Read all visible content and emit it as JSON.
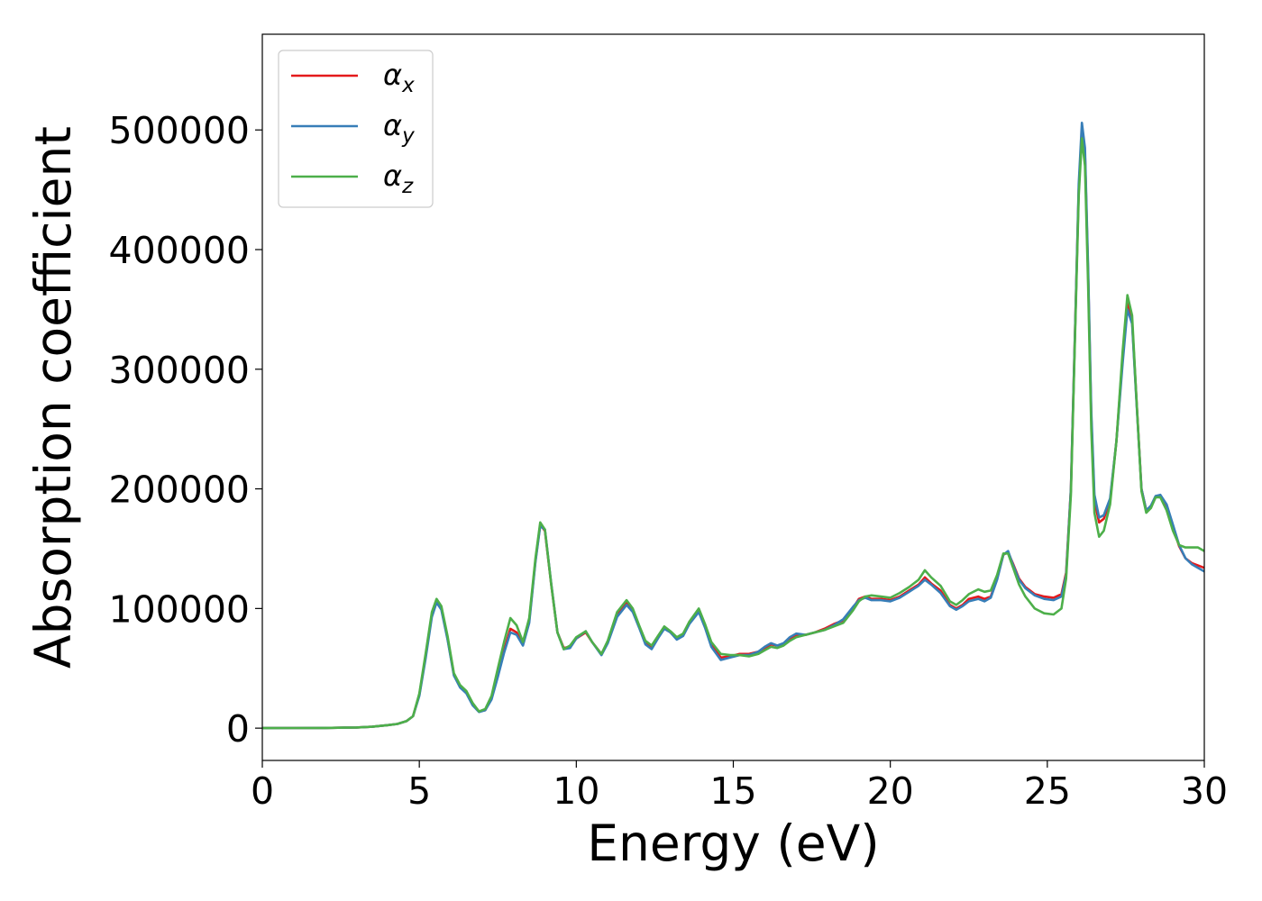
{
  "chart_data": {
    "type": "line",
    "title": "",
    "xlabel": "Energy (eV)",
    "ylabel": "Absorption coefficient",
    "xlim": [
      0,
      30
    ],
    "ylim": [
      -27000,
      580000
    ],
    "xticks": [
      0,
      5,
      10,
      15,
      20,
      25,
      30
    ],
    "yticks": [
      0,
      100000,
      200000,
      300000,
      400000,
      500000
    ],
    "grid": false,
    "legend_position": "top-left",
    "series": [
      {
        "name": "α",
        "subscript": "x",
        "color": "#e41a1c",
        "x": [
          0,
          1,
          2,
          3,
          3.5,
          4,
          4.3,
          4.6,
          4.8,
          5.0,
          5.2,
          5.4,
          5.55,
          5.7,
          5.9,
          6.1,
          6.3,
          6.5,
          6.7,
          6.9,
          7.1,
          7.3,
          7.5,
          7.7,
          7.9,
          8.1,
          8.3,
          8.5,
          8.7,
          8.85,
          9.0,
          9.2,
          9.4,
          9.6,
          9.8,
          10.0,
          10.3,
          10.5,
          10.8,
          11.0,
          11.3,
          11.6,
          11.8,
          12.0,
          12.2,
          12.4,
          12.6,
          12.8,
          13.0,
          13.2,
          13.4,
          13.6,
          13.9,
          14.1,
          14.3,
          14.6,
          14.9,
          15.2,
          15.5,
          15.8,
          16.0,
          16.2,
          16.4,
          16.6,
          16.8,
          17.0,
          17.3,
          17.6,
          17.9,
          18.2,
          18.5,
          18.8,
          19.0,
          19.2,
          19.4,
          19.7,
          20.0,
          20.3,
          20.6,
          20.9,
          21.1,
          21.3,
          21.6,
          21.9,
          22.1,
          22.3,
          22.5,
          22.8,
          23.0,
          23.2,
          23.4,
          23.6,
          23.75,
          23.9,
          24.1,
          24.3,
          24.6,
          24.9,
          25.2,
          25.45,
          25.6,
          25.75,
          25.9,
          26.0,
          26.1,
          26.2,
          26.3,
          26.4,
          26.5,
          26.65,
          26.8,
          27.0,
          27.2,
          27.4,
          27.55,
          27.7,
          27.85,
          28.0,
          28.15,
          28.3,
          28.45,
          28.6,
          28.8,
          29.0,
          29.2,
          29.4,
          29.6,
          29.8,
          30.0
        ],
        "y": [
          0,
          100,
          200,
          600,
          1200,
          2500,
          3500,
          6000,
          10000,
          28000,
          60000,
          95000,
          106000,
          100000,
          75000,
          45000,
          35000,
          30000,
          20000,
          14000,
          15000,
          25000,
          45000,
          65000,
          83000,
          80000,
          70000,
          90000,
          140000,
          170000,
          165000,
          120000,
          80000,
          67000,
          68000,
          75000,
          80000,
          72000,
          62000,
          72000,
          95000,
          105000,
          98000,
          85000,
          72000,
          68000,
          76000,
          84000,
          80000,
          75000,
          78000,
          88000,
          98000,
          85000,
          70000,
          59000,
          60000,
          62000,
          62000,
          64000,
          67000,
          70000,
          69000,
          70000,
          75000,
          78000,
          78000,
          80000,
          83000,
          87000,
          90000,
          100000,
          108000,
          110000,
          108000,
          108000,
          107000,
          110000,
          115000,
          120000,
          126000,
          121000,
          115000,
          103000,
          100000,
          103000,
          108000,
          110000,
          108000,
          110000,
          125000,
          145000,
          147000,
          138000,
          125000,
          118000,
          112000,
          110000,
          109000,
          112000,
          130000,
          200000,
          350000,
          450000,
          500000,
          480000,
          380000,
          260000,
          190000,
          172000,
          175000,
          190000,
          240000,
          310000,
          355000,
          340000,
          270000,
          200000,
          182000,
          185000,
          193000,
          194000,
          185000,
          168000,
          152000,
          142000,
          138000,
          136000,
          134000
        ]
      },
      {
        "name": "α",
        "subscript": "y",
        "color": "#377eb8",
        "x": [
          0,
          1,
          2,
          3,
          3.5,
          4,
          4.3,
          4.6,
          4.8,
          5.0,
          5.2,
          5.4,
          5.55,
          5.7,
          5.9,
          6.1,
          6.3,
          6.5,
          6.7,
          6.9,
          7.1,
          7.3,
          7.5,
          7.7,
          7.9,
          8.1,
          8.3,
          8.5,
          8.7,
          8.85,
          9.0,
          9.2,
          9.4,
          9.6,
          9.8,
          10.0,
          10.3,
          10.5,
          10.8,
          11.0,
          11.3,
          11.6,
          11.8,
          12.0,
          12.2,
          12.4,
          12.6,
          12.8,
          13.0,
          13.2,
          13.4,
          13.6,
          13.9,
          14.1,
          14.3,
          14.6,
          14.9,
          15.2,
          15.5,
          15.8,
          16.0,
          16.2,
          16.4,
          16.6,
          16.8,
          17.0,
          17.3,
          17.6,
          17.9,
          18.2,
          18.5,
          18.8,
          19.0,
          19.2,
          19.4,
          19.7,
          20.0,
          20.3,
          20.6,
          20.9,
          21.1,
          21.3,
          21.6,
          21.9,
          22.1,
          22.3,
          22.5,
          22.8,
          23.0,
          23.2,
          23.4,
          23.6,
          23.75,
          23.9,
          24.1,
          24.3,
          24.6,
          24.9,
          25.2,
          25.45,
          25.6,
          25.75,
          25.9,
          26.0,
          26.1,
          26.2,
          26.3,
          26.4,
          26.5,
          26.65,
          26.8,
          27.0,
          27.2,
          27.4,
          27.55,
          27.7,
          27.85,
          28.0,
          28.15,
          28.3,
          28.45,
          28.6,
          28.8,
          29.0,
          29.2,
          29.4,
          29.6,
          29.8,
          30.0
        ],
        "y": [
          0,
          100,
          200,
          600,
          1200,
          2500,
          3500,
          6000,
          10000,
          27000,
          58000,
          93000,
          105000,
          99000,
          74000,
          44000,
          34000,
          29000,
          19000,
          13500,
          15000,
          24000,
          43000,
          63000,
          80000,
          78000,
          69000,
          88000,
          139000,
          169000,
          166000,
          121000,
          80000,
          66000,
          67000,
          75000,
          81000,
          72000,
          61000,
          71000,
          93000,
          103000,
          97000,
          84000,
          70000,
          66000,
          75000,
          83000,
          80000,
          74000,
          77000,
          87000,
          97000,
          84000,
          68000,
          57000,
          59000,
          61000,
          61000,
          64000,
          68000,
          71000,
          69000,
          71000,
          76000,
          79000,
          78000,
          80000,
          82000,
          86000,
          91000,
          101000,
          107000,
          109000,
          107000,
          107000,
          106000,
          109000,
          114000,
          119000,
          124000,
          120000,
          113000,
          102000,
          99000,
          102000,
          106000,
          108000,
          106000,
          109000,
          124000,
          145000,
          148000,
          137000,
          124000,
          117000,
          111000,
          108000,
          107000,
          110000,
          128000,
          200000,
          350000,
          455000,
          506000,
          485000,
          385000,
          265000,
          195000,
          176000,
          178000,
          192000,
          240000,
          305000,
          350000,
          338000,
          268000,
          200000,
          182000,
          186000,
          194000,
          195000,
          187000,
          170000,
          153000,
          142000,
          137000,
          134000,
          131000
        ]
      },
      {
        "name": "α",
        "subscript": "z",
        "color": "#4daf4a",
        "x": [
          0,
          1,
          2,
          3,
          3.5,
          4,
          4.3,
          4.6,
          4.8,
          5.0,
          5.2,
          5.4,
          5.55,
          5.7,
          5.9,
          6.1,
          6.3,
          6.5,
          6.7,
          6.9,
          7.1,
          7.3,
          7.5,
          7.7,
          7.9,
          8.1,
          8.3,
          8.5,
          8.7,
          8.85,
          9.0,
          9.2,
          9.4,
          9.6,
          9.8,
          10.0,
          10.3,
          10.5,
          10.8,
          11.0,
          11.3,
          11.6,
          11.8,
          12.0,
          12.2,
          12.4,
          12.6,
          12.8,
          13.0,
          13.2,
          13.4,
          13.6,
          13.9,
          14.1,
          14.3,
          14.6,
          14.9,
          15.2,
          15.5,
          15.8,
          16.0,
          16.2,
          16.4,
          16.6,
          16.8,
          17.0,
          17.3,
          17.6,
          17.9,
          18.2,
          18.5,
          18.8,
          19.0,
          19.2,
          19.4,
          19.7,
          20.0,
          20.3,
          20.6,
          20.9,
          21.1,
          21.3,
          21.6,
          21.9,
          22.1,
          22.3,
          22.5,
          22.8,
          23.0,
          23.2,
          23.4,
          23.6,
          23.75,
          23.9,
          24.1,
          24.3,
          24.6,
          24.9,
          25.2,
          25.45,
          25.6,
          25.75,
          25.9,
          26.0,
          26.1,
          26.2,
          26.3,
          26.4,
          26.5,
          26.65,
          26.8,
          27.0,
          27.2,
          27.4,
          27.55,
          27.7,
          27.85,
          28.0,
          28.15,
          28.3,
          28.45,
          28.6,
          28.8,
          29.0,
          29.2,
          29.4,
          29.6,
          29.8,
          30.0
        ],
        "y": [
          0,
          100,
          200,
          600,
          1200,
          2500,
          3500,
          6000,
          10000,
          29000,
          62000,
          97000,
          108000,
          102000,
          77000,
          46000,
          36000,
          31000,
          21000,
          14000,
          16000,
          27000,
          50000,
          72000,
          92000,
          86000,
          72000,
          92000,
          142000,
          172000,
          166000,
          120000,
          80000,
          66000,
          69000,
          76000,
          81000,
          72000,
          62000,
          73000,
          97000,
          107000,
          100000,
          86000,
          73000,
          69000,
          77000,
          85000,
          81000,
          76000,
          79000,
          89000,
          100000,
          87000,
          72000,
          62000,
          61000,
          61000,
          60000,
          62000,
          65000,
          68000,
          67000,
          69000,
          73000,
          76000,
          78000,
          80000,
          82000,
          85000,
          88000,
          98000,
          106000,
          110000,
          111000,
          110000,
          109000,
          113000,
          118000,
          124000,
          132000,
          126000,
          119000,
          106000,
          103000,
          107000,
          112000,
          116000,
          114000,
          115000,
          128000,
          146000,
          146000,
          135000,
          120000,
          110000,
          100000,
          96000,
          95000,
          100000,
          125000,
          195000,
          345000,
          445000,
          493000,
          470000,
          370000,
          250000,
          180000,
          160000,
          165000,
          187000,
          240000,
          315000,
          362000,
          345000,
          270000,
          198000,
          180000,
          184000,
          193000,
          193000,
          182000,
          165000,
          153000,
          151000,
          151000,
          151000,
          148000
        ]
      }
    ]
  }
}
